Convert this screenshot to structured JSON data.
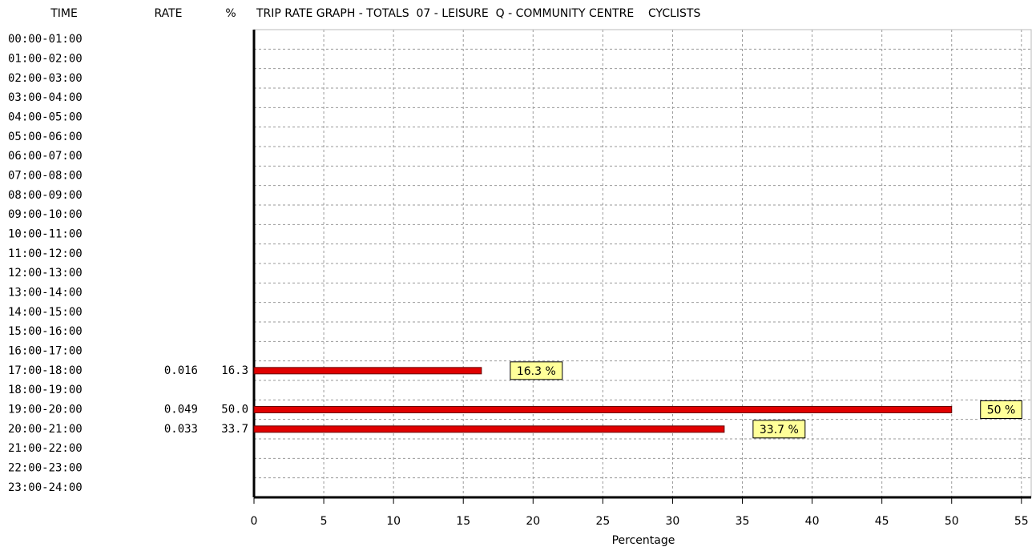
{
  "chart_data": {
    "type": "bar",
    "title": "TRIP RATE GRAPH - TOTALS  07 - LEISURE  Q - COMMUNITY CENTRE    CYCLISTS",
    "time_header": "TIME",
    "rate_header": "RATE",
    "percent_header": "%",
    "categories": [
      "00:00-01:00",
      "01:00-02:00",
      "02:00-03:00",
      "03:00-04:00",
      "04:00-05:00",
      "05:00-06:00",
      "06:00-07:00",
      "07:00-08:00",
      "08:00-09:00",
      "09:00-10:00",
      "10:00-11:00",
      "11:00-12:00",
      "12:00-13:00",
      "13:00-14:00",
      "14:00-15:00",
      "15:00-16:00",
      "16:00-17:00",
      "17:00-18:00",
      "18:00-19:00",
      "19:00-20:00",
      "20:00-21:00",
      "21:00-22:00",
      "22:00-23:00",
      "23:00-24:00"
    ],
    "values": [
      null,
      null,
      null,
      null,
      null,
      null,
      null,
      null,
      null,
      null,
      null,
      null,
      null,
      null,
      null,
      null,
      null,
      16.3,
      null,
      50,
      33.7,
      null,
      null,
      null
    ],
    "value_labels": [
      null,
      null,
      null,
      null,
      null,
      null,
      null,
      null,
      null,
      null,
      null,
      null,
      null,
      null,
      null,
      null,
      null,
      "16.3 %",
      null,
      "50 %",
      "33.7 %",
      null,
      null,
      null
    ],
    "rates": [
      null,
      null,
      null,
      null,
      null,
      null,
      null,
      null,
      null,
      null,
      null,
      null,
      null,
      null,
      null,
      null,
      null,
      0.016,
      null,
      0.049,
      0.033,
      null,
      null,
      null
    ],
    "percent_column": [
      null,
      null,
      null,
      null,
      null,
      null,
      null,
      null,
      null,
      null,
      null,
      null,
      null,
      null,
      null,
      null,
      null,
      "16.3",
      null,
      "50.0",
      "33.7",
      null,
      null,
      null
    ],
    "color": "#e00000",
    "label_color": "#ffff99",
    "xlabel": "Percentage",
    "xlim": [
      0,
      55.7
    ],
    "xticks": [
      0,
      5,
      10,
      15,
      20,
      25,
      30,
      35,
      40,
      45,
      50,
      55
    ],
    "grid": true
  }
}
